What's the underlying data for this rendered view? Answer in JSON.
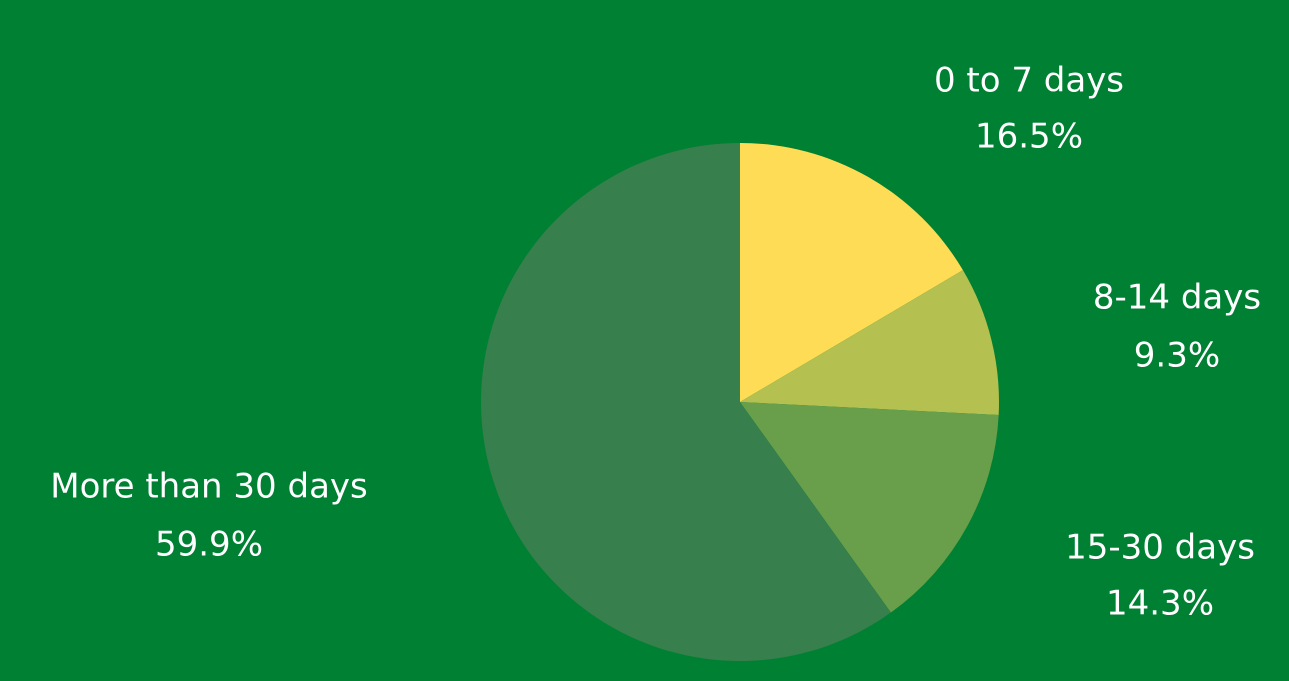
{
  "colors": {
    "background": "#008033",
    "label_text": "#ffffff"
  },
  "chart_data": {
    "type": "pie",
    "title": "",
    "start_angle_deg": 0,
    "direction": "clockwise",
    "legend": "none",
    "slices": [
      {
        "label": "0 to 7 days",
        "value": 16.5,
        "value_label": "16.5%",
        "color": "#ffdc55"
      },
      {
        "label": "8-14 days",
        "value": 9.3,
        "value_label": "9.3%",
        "color": "#b4c04f"
      },
      {
        "label": "15-30 days",
        "value": 14.3,
        "value_label": "14.3%",
        "color": "#699f4a"
      },
      {
        "label": "More than 30 days",
        "value": 59.9,
        "value_label": "59.9%",
        "color": "#377f4c"
      }
    ]
  }
}
